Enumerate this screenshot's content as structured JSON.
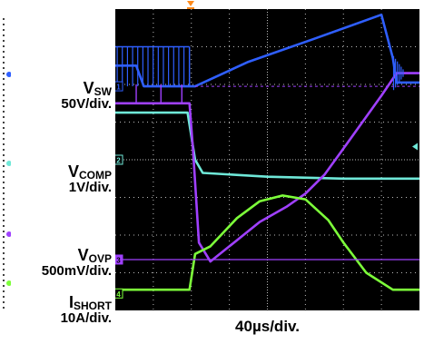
{
  "timebase_label": "40µs/div.",
  "channels": [
    {
      "id": "1",
      "name": "V",
      "sub": "SW",
      "scale": "50V/div.",
      "color": "#2f5fff",
      "name_id": "vsw"
    },
    {
      "id": "2",
      "name": "V",
      "sub": "COMP",
      "scale": "1V/div.",
      "color": "#6fe8d8",
      "name_id": "vcomp"
    },
    {
      "id": "3",
      "name": "V",
      "sub": "OVP",
      "scale": "500mV/div.",
      "color": "#a040ff",
      "name_id": "vovp"
    },
    {
      "id": "4",
      "name": "I",
      "sub": "SHORT",
      "scale": "10A/div.",
      "color": "#7dff3a",
      "name_id": "ishort"
    }
  ],
  "trigger_marker": "T",
  "chart_data": {
    "type": "line",
    "title": "",
    "xlabel": "40µs/div.",
    "ylabel": "",
    "x_divisions": 8,
    "y_divisions": 8,
    "grid": true,
    "series": [
      {
        "name": "VSW",
        "x": [
          0,
          0.55,
          0.75,
          2.1,
          3.5,
          5.2,
          7.0,
          7.3,
          7.4,
          7.6,
          8.0
        ],
        "y": [
          6.5,
          6.5,
          5.95,
          5.95,
          6.6,
          7.2,
          7.85,
          6.7,
          6.05,
          6.05,
          6.05
        ]
      },
      {
        "name": "VCOMP",
        "x": [
          0,
          1.9,
          2.1,
          2.3,
          4.0,
          6.0,
          8.0
        ],
        "y": [
          5.25,
          5.25,
          4.0,
          3.65,
          3.55,
          3.5,
          3.5
        ]
      },
      {
        "name": "VOVP",
        "x": [
          0,
          1.95,
          2.05,
          2.2,
          2.5,
          3.0,
          3.8,
          4.5,
          5.0,
          5.5,
          6.0,
          6.5,
          7.0,
          7.4,
          8.0
        ],
        "y": [
          5.5,
          5.5,
          4.2,
          1.8,
          1.3,
          1.7,
          2.35,
          2.75,
          3.1,
          3.6,
          4.3,
          5.0,
          5.7,
          6.3,
          6.3
        ]
      },
      {
        "name": "ISHORT",
        "x": [
          0,
          1.95,
          2.1,
          2.5,
          3.2,
          3.8,
          4.4,
          5.0,
          5.6,
          6.0,
          6.6,
          7.3,
          8.0
        ],
        "y": [
          0.55,
          0.55,
          1.5,
          1.7,
          2.45,
          2.9,
          3.05,
          2.95,
          2.4,
          1.8,
          1.0,
          0.55,
          0.55
        ]
      }
    ]
  }
}
